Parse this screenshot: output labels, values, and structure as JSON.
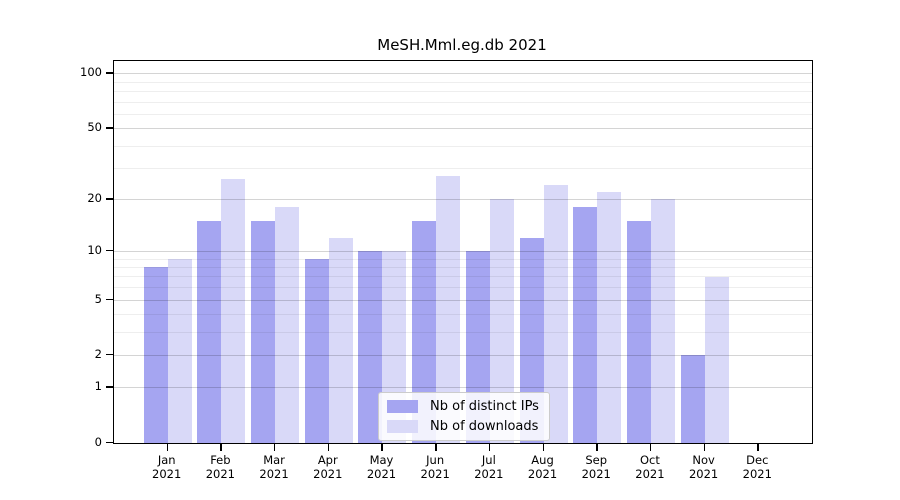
{
  "chart_data": {
    "type": "bar",
    "title": "MeSH.Mml.eg.db 2021",
    "categories": [
      "Jan",
      "Feb",
      "Mar",
      "Apr",
      "May",
      "Jun",
      "Jul",
      "Aug",
      "Sep",
      "Oct",
      "Nov",
      "Dec"
    ],
    "category_year": "2021",
    "series": [
      {
        "name": "Nb of distinct IPs",
        "color": "#a5a5f1",
        "values": [
          8,
          15,
          15,
          9,
          10,
          15,
          10,
          12,
          18,
          15,
          2,
          0
        ]
      },
      {
        "name": "Nb of downloads",
        "color": "#d9d9f8",
        "values": [
          9,
          26,
          18,
          12,
          10,
          27,
          20,
          24,
          22,
          20,
          7,
          0
        ]
      }
    ],
    "xlabel": "",
    "ylabel": "",
    "yscale": "log1p",
    "ylim": [
      0,
      116
    ],
    "yticks": [
      0,
      1,
      2,
      5,
      10,
      20,
      50,
      100
    ],
    "gridlines_minor": [
      3,
      4,
      6,
      7,
      8,
      9,
      30,
      40,
      60,
      70,
      80,
      90
    ],
    "gridlines_major": [
      1,
      2,
      5,
      10,
      20,
      50,
      100
    ],
    "grid": "horizontal",
    "legend_position": "bottom-center"
  }
}
